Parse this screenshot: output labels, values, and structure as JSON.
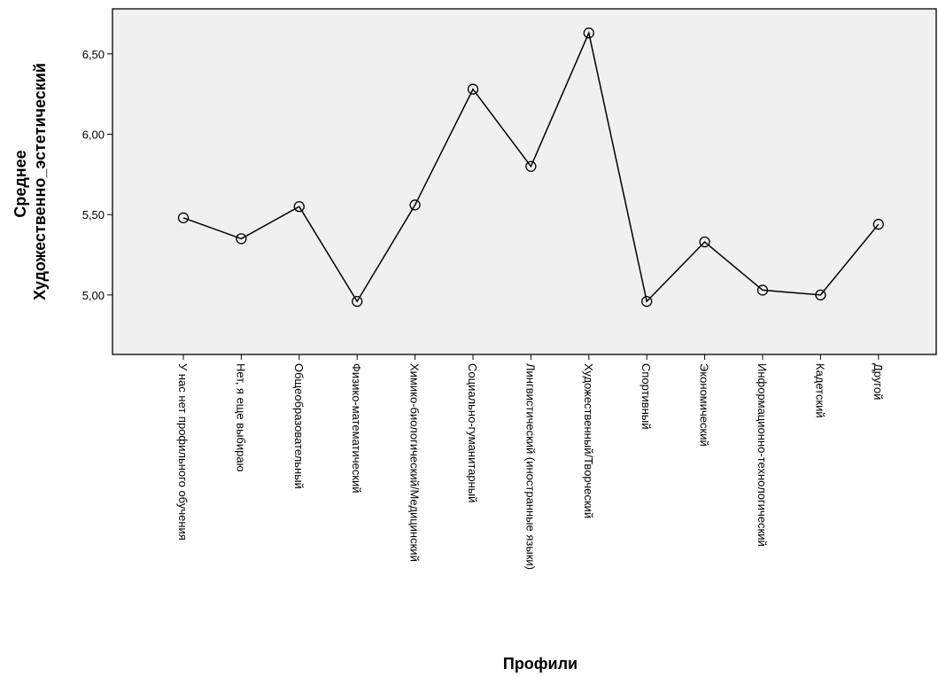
{
  "chart_data": {
    "type": "line",
    "xlabel": "Профили",
    "ylabel_lines": [
      "Среднее",
      "Художественно_эстетический"
    ],
    "ylim": [
      4.63,
      6.78
    ],
    "yticks": [
      "5,00",
      "5,50",
      "6,00",
      "6,50"
    ],
    "ytick_values": [
      5.0,
      5.5,
      6.0,
      6.5
    ],
    "grid": false,
    "categories": [
      "У нас нет профильного обучения",
      "Нет, я еще выбираю",
      "Общеобразовательный",
      "Физико-математический",
      "Химико-биологический/Медицинский",
      "Социально-гуманитарный",
      "Лингвистический (иностранные языки)",
      "Художественный/Творческий",
      "Спортивный",
      "Экономический",
      "Информационно-технологический",
      "Кадетский",
      "Другой"
    ],
    "values": [
      5.48,
      5.35,
      5.55,
      4.96,
      5.56,
      6.28,
      5.8,
      6.63,
      4.96,
      5.33,
      5.03,
      5.0,
      5.44
    ],
    "colors": {
      "plot_background": "#f0f0f0",
      "line": "#000000"
    }
  }
}
